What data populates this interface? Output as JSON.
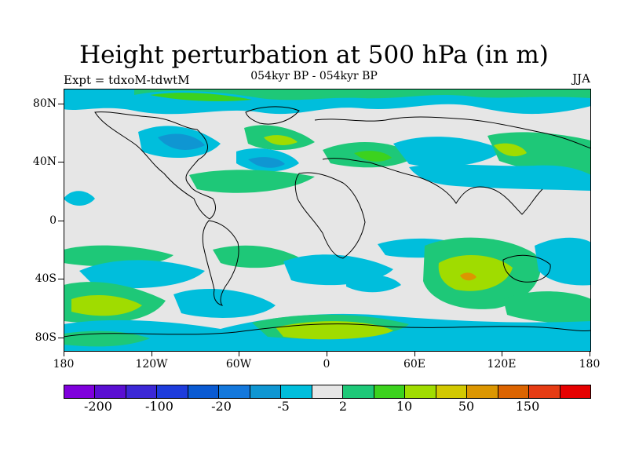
{
  "header": {
    "title": "Height perturbation at 500 hPa (in m)",
    "subtitle": "054kyr BP - 054kyr BP",
    "experiment": "Expt = tdxoM-tdwtM",
    "season": "JJA"
  },
  "map": {
    "lat_ticks": [
      "80N",
      "40N",
      "0",
      "40S",
      "80S"
    ],
    "lon_ticks": [
      "180",
      "120W",
      "60W",
      "0",
      "60E",
      "120E",
      "180"
    ],
    "background_color": "#e6e6e6",
    "coastline_color": "#000000"
  },
  "colorbar": {
    "colors": [
      "#7f00dc",
      "#5a0fd2",
      "#3c28d6",
      "#1e3cdc",
      "#0a5ad2",
      "#1478dc",
      "#0f96d2",
      "#00bedc",
      "#e6e6e6",
      "#1ec878",
      "#3cd21e",
      "#a0dc00",
      "#d2c800",
      "#dc9600",
      "#dc6400",
      "#e63c14",
      "#e60000"
    ],
    "labels": [
      "-200",
      "-100",
      "-20",
      "-5",
      "2",
      "10",
      "50",
      "150"
    ]
  }
}
